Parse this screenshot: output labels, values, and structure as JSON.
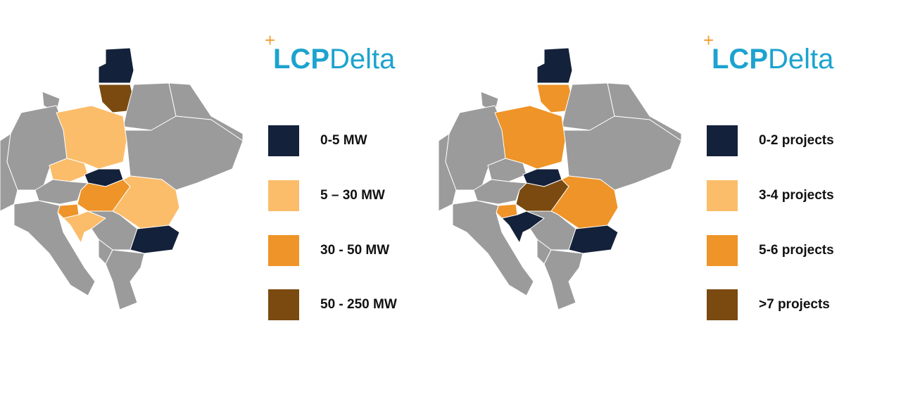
{
  "panels": [
    {
      "logo": {
        "mark": "+",
        "bold": "LCP",
        "light": "Delta"
      },
      "legend": [
        {
          "label": "0-5 MW",
          "color": "#14213a"
        },
        {
          "label": "5 – 30 MW",
          "color": "#fbbd6a"
        },
        {
          "label": "30 - 50 MW",
          "color": "#ef9428"
        },
        {
          "label": "50 - 250 MW",
          "color": "#7a4a10"
        }
      ]
    },
    {
      "logo": {
        "mark": "+",
        "bold": "LCP",
        "light": "Delta"
      },
      "legend": [
        {
          "label": "0-2 projects",
          "color": "#14213a"
        },
        {
          "label": "3-4 projects",
          "color": "#fbbd6a"
        },
        {
          "label": "5-6 projects",
          "color": "#ef9428"
        },
        {
          "label": ">7 projects",
          "color": "#7a4a10"
        }
      ]
    }
  ]
}
